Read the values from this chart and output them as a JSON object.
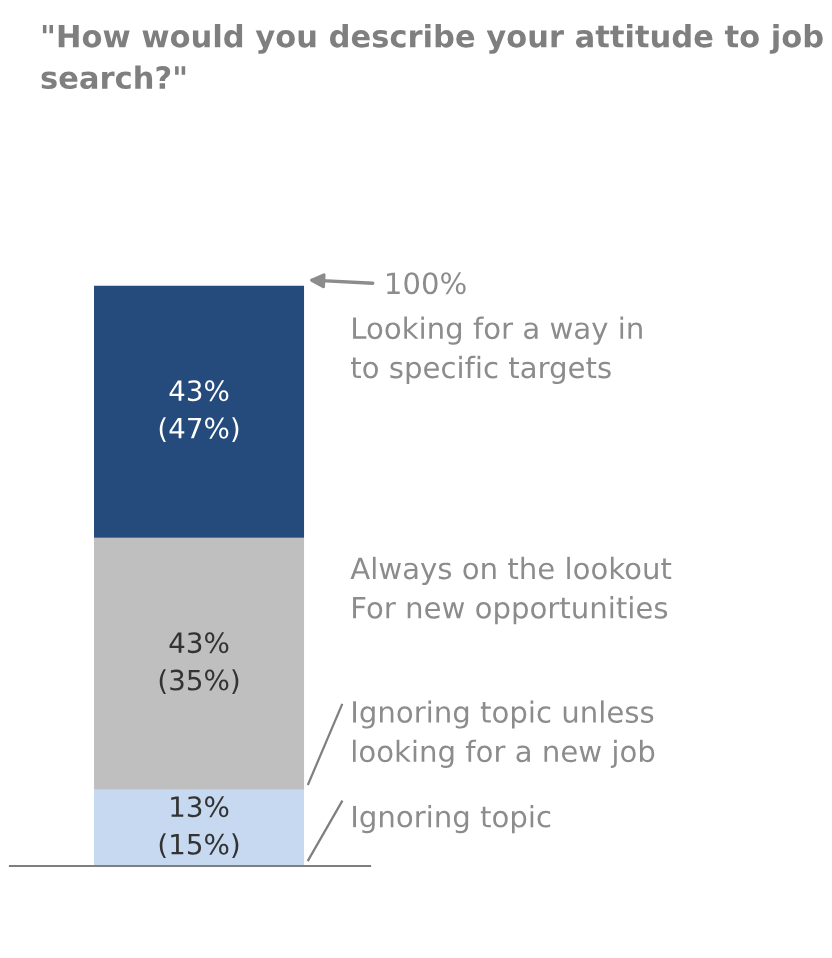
{
  "chart_data": {
    "type": "bar",
    "stacked": true,
    "title": "\"How would you describe your attitude to job search?\"",
    "categories": [
      null
    ],
    "series": [
      {
        "color": "#c6d9f0",
        "values": [
          13
        ],
        "value_labels": [
          "13%\n(15%)"
        ]
      },
      {
        "color": "#bfbfbf",
        "values": [
          43
        ],
        "value_labels": [
          "43%\n(35%)"
        ]
      },
      {
        "color": "#254a7c",
        "values": [
          43
        ],
        "value_labels": [
          "43%\n(47%)"
        ]
      }
    ],
    "ylim": [
      0,
      100
    ],
    "grid": false,
    "legend": false,
    "annotations": [
      "100%",
      "Looking for a way in\nto specific targets",
      "Always on the lookout\nFor new opportunities",
      "Ignoring topic unless\nlooking for a new job",
      "Ignoring topic"
    ]
  }
}
